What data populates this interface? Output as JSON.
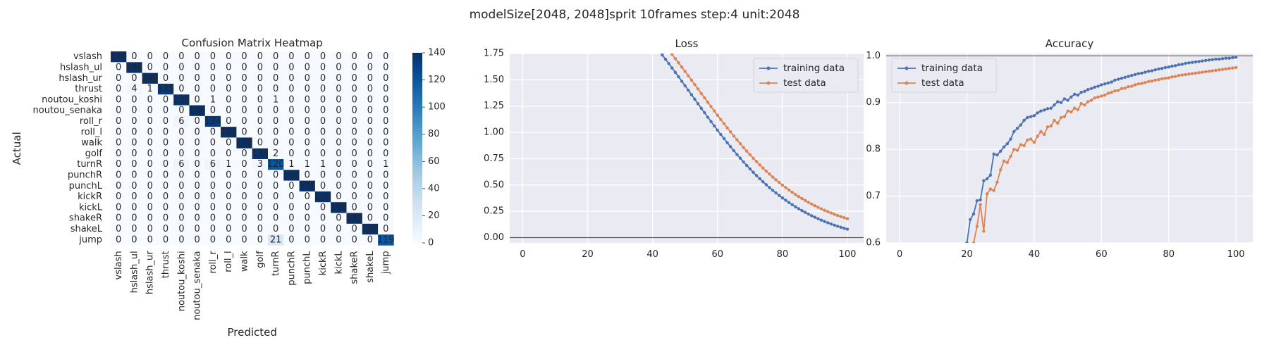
{
  "suptitle": "modelSize[2048, 2048]sprit 10frames step:4 unit:2048",
  "chart_data": [
    {
      "type": "heatmap",
      "title": "Confusion Matrix Heatmap",
      "xlabel": "Predicted",
      "ylabel": "Actual",
      "labels": [
        "vslash",
        "hslash_ul",
        "hslash_ur",
        "thrust",
        "noutou_koshi",
        "noutou_senaka",
        "roll_r",
        "roll_l",
        "walk",
        "golf",
        "turnR",
        "punchR",
        "punchL",
        "kickR",
        "kickL",
        "shakeR",
        "shakeL",
        "jump"
      ],
      "matrix": [
        [
          140,
          0,
          0,
          0,
          0,
          0,
          0,
          0,
          0,
          0,
          0,
          0,
          0,
          0,
          0,
          0,
          0,
          0
        ],
        [
          0,
          140,
          0,
          0,
          0,
          0,
          0,
          0,
          0,
          0,
          0,
          0,
          0,
          0,
          0,
          0,
          0,
          0
        ],
        [
          0,
          0,
          140,
          0,
          0,
          0,
          0,
          0,
          0,
          0,
          0,
          0,
          0,
          0,
          0,
          0,
          0,
          0
        ],
        [
          0,
          4,
          1,
          135,
          0,
          0,
          0,
          0,
          0,
          0,
          0,
          0,
          0,
          0,
          0,
          0,
          0,
          0
        ],
        [
          0,
          0,
          0,
          0,
          138,
          0,
          1,
          0,
          0,
          0,
          1,
          0,
          0,
          0,
          0,
          0,
          0,
          0
        ],
        [
          0,
          0,
          0,
          0,
          0,
          140,
          0,
          0,
          0,
          0,
          0,
          0,
          0,
          0,
          0,
          0,
          0,
          0
        ],
        [
          0,
          0,
          0,
          0,
          6,
          0,
          134,
          0,
          0,
          0,
          0,
          0,
          0,
          0,
          0,
          0,
          0,
          0
        ],
        [
          0,
          0,
          0,
          0,
          0,
          0,
          0,
          140,
          0,
          0,
          0,
          0,
          0,
          0,
          0,
          0,
          0,
          0
        ],
        [
          0,
          0,
          0,
          0,
          0,
          0,
          0,
          0,
          140,
          0,
          0,
          0,
          0,
          0,
          0,
          0,
          0,
          0
        ],
        [
          0,
          0,
          0,
          0,
          0,
          0,
          0,
          0,
          0,
          138,
          2,
          0,
          0,
          0,
          0,
          0,
          0,
          0
        ],
        [
          0,
          0,
          0,
          0,
          6,
          0,
          6,
          1,
          0,
          3,
          120,
          1,
          1,
          1,
          0,
          0,
          0,
          1
        ],
        [
          0,
          0,
          0,
          0,
          0,
          0,
          0,
          0,
          0,
          0,
          0,
          140,
          0,
          0,
          0,
          0,
          0,
          0
        ],
        [
          0,
          0,
          0,
          0,
          0,
          0,
          0,
          0,
          0,
          0,
          0,
          0,
          140,
          0,
          0,
          0,
          0,
          0
        ],
        [
          0,
          0,
          0,
          0,
          0,
          0,
          0,
          0,
          0,
          0,
          0,
          0,
          0,
          140,
          0,
          0,
          0,
          0
        ],
        [
          0,
          0,
          0,
          0,
          0,
          0,
          0,
          0,
          0,
          0,
          0,
          0,
          0,
          0,
          140,
          0,
          0,
          0
        ],
        [
          0,
          0,
          0,
          0,
          0,
          0,
          0,
          0,
          0,
          0,
          0,
          0,
          0,
          0,
          0,
          140,
          0,
          0
        ],
        [
          0,
          0,
          0,
          0,
          0,
          0,
          0,
          0,
          0,
          0,
          0,
          0,
          0,
          0,
          0,
          0,
          140,
          0
        ],
        [
          0,
          0,
          0,
          0,
          0,
          0,
          0,
          0,
          0,
          0,
          21,
          0,
          0,
          0,
          0,
          0,
          0,
          119
        ]
      ],
      "colorbar": {
        "min": 0,
        "max": 140,
        "ticks": [
          0,
          20,
          40,
          60,
          80,
          100,
          120,
          140
        ]
      },
      "colors": {
        "low": "#f7fbff",
        "high": "#08306b"
      }
    },
    {
      "type": "line",
      "title": "Loss",
      "xlim": [
        -4,
        105
      ],
      "ylim": [
        -0.05,
        1.75
      ],
      "xticks": [
        0,
        20,
        40,
        60,
        80,
        100
      ],
      "yticks": [
        "0.00",
        "0.25",
        "0.50",
        "0.75",
        "1.00",
        "1.25",
        "1.50",
        "1.75"
      ],
      "hline": 0,
      "legend": "top-right",
      "series": [
        {
          "name": "training data",
          "color": "#4c72b0",
          "x_start": 1,
          "x_end": 100,
          "y_start": 2.66,
          "y_end": 0.08,
          "mid": 52,
          "k": 0.06,
          "mode": "logistic"
        },
        {
          "name": "test data",
          "color": "#dd8452",
          "x_start": 1,
          "x_end": 100,
          "y_start": 2.7,
          "y_end": 0.18,
          "mid": 54,
          "k": 0.06,
          "mode": "logistic"
        }
      ]
    },
    {
      "type": "line",
      "title": "Accuracy",
      "xlim": [
        -4,
        105
      ],
      "ylim": [
        0.6,
        1.005
      ],
      "xticks": [
        0,
        20,
        40,
        60,
        80,
        100
      ],
      "yticks": [
        "0.6",
        "0.7",
        "0.8",
        "0.9",
        "1.0"
      ],
      "hline": 1.0,
      "legend": "top-left",
      "series": [
        {
          "name": "training data",
          "color": "#4c72b0",
          "points": [
            [
              20,
              0.6
            ],
            [
              21,
              0.65
            ],
            [
              22,
              0.662
            ],
            [
              23,
              0.69
            ],
            [
              24,
              0.692
            ],
            [
              25,
              0.733
            ],
            [
              26,
              0.737
            ],
            [
              27,
              0.745
            ],
            [
              28,
              0.79
            ],
            [
              29,
              0.788
            ],
            [
              30,
              0.796
            ],
            [
              31,
              0.805
            ],
            [
              32,
              0.812
            ],
            [
              33,
              0.822
            ],
            [
              34,
              0.838
            ],
            [
              35,
              0.845
            ],
            [
              36,
              0.852
            ],
            [
              37,
              0.862
            ],
            [
              38,
              0.868
            ],
            [
              39,
              0.87
            ],
            [
              40,
              0.872
            ],
            [
              41,
              0.878
            ],
            [
              42,
              0.882
            ],
            [
              43,
              0.884
            ],
            [
              44,
              0.887
            ],
            [
              45,
              0.888
            ],
            [
              46,
              0.895
            ],
            [
              47,
              0.902
            ],
            [
              48,
              0.9
            ],
            [
              49,
              0.908
            ],
            [
              50,
              0.905
            ],
            [
              51,
              0.912
            ],
            [
              52,
              0.918
            ],
            [
              53,
              0.916
            ],
            [
              54,
              0.922
            ],
            [
              55,
              0.924
            ],
            [
              56,
              0.928
            ],
            [
              57,
              0.93
            ],
            [
              58,
              0.933
            ],
            [
              59,
              0.935
            ],
            [
              60,
              0.938
            ],
            [
              61,
              0.94
            ],
            [
              62,
              0.942
            ],
            [
              63,
              0.944
            ],
            [
              64,
              0.948
            ],
            [
              65,
              0.95
            ],
            [
              66,
              0.952
            ],
            [
              67,
              0.954
            ],
            [
              68,
              0.956
            ],
            [
              69,
              0.958
            ],
            [
              70,
              0.96
            ],
            [
              71,
              0.962
            ],
            [
              72,
              0.963
            ],
            [
              73,
              0.965
            ],
            [
              74,
              0.967
            ],
            [
              75,
              0.968
            ],
            [
              76,
              0.97
            ],
            [
              77,
              0.972
            ],
            [
              78,
              0.973
            ],
            [
              79,
              0.975
            ],
            [
              80,
              0.976
            ],
            [
              81,
              0.978
            ],
            [
              82,
              0.979
            ],
            [
              83,
              0.981
            ],
            [
              84,
              0.982
            ],
            [
              85,
              0.984
            ],
            [
              86,
              0.985
            ],
            [
              87,
              0.986
            ],
            [
              88,
              0.987
            ],
            [
              89,
              0.988
            ],
            [
              90,
              0.989
            ],
            [
              91,
              0.99
            ],
            [
              92,
              0.991
            ],
            [
              93,
              0.992
            ],
            [
              94,
              0.993
            ],
            [
              95,
              0.993
            ],
            [
              96,
              0.994
            ],
            [
              97,
              0.995
            ],
            [
              98,
              0.995
            ],
            [
              99,
              0.996
            ],
            [
              100,
              0.997
            ]
          ]
        },
        {
          "name": "test data",
          "color": "#dd8452",
          "points": [
            [
              22,
              0.6
            ],
            [
              23,
              0.635
            ],
            [
              24,
              0.682
            ],
            [
              25,
              0.625
            ],
            [
              26,
              0.705
            ],
            [
              27,
              0.715
            ],
            [
              28,
              0.712
            ],
            [
              29,
              0.73
            ],
            [
              30,
              0.756
            ],
            [
              31,
              0.775
            ],
            [
              32,
              0.772
            ],
            [
              33,
              0.785
            ],
            [
              34,
              0.8
            ],
            [
              35,
              0.798
            ],
            [
              36,
              0.81
            ],
            [
              37,
              0.808
            ],
            [
              38,
              0.82
            ],
            [
              39,
              0.822
            ],
            [
              40,
              0.815
            ],
            [
              41,
              0.828
            ],
            [
              42,
              0.838
            ],
            [
              43,
              0.832
            ],
            [
              44,
              0.848
            ],
            [
              45,
              0.85
            ],
            [
              46,
              0.862
            ],
            [
              47,
              0.856
            ],
            [
              48,
              0.868
            ],
            [
              49,
              0.87
            ],
            [
              50,
              0.882
            ],
            [
              51,
              0.88
            ],
            [
              52,
              0.888
            ],
            [
              53,
              0.885
            ],
            [
              54,
              0.898
            ],
            [
              55,
              0.895
            ],
            [
              56,
              0.902
            ],
            [
              57,
              0.905
            ],
            [
              58,
              0.91
            ],
            [
              59,
              0.912
            ],
            [
              60,
              0.914
            ],
            [
              61,
              0.916
            ],
            [
              62,
              0.92
            ],
            [
              63,
              0.922
            ],
            [
              64,
              0.925
            ],
            [
              65,
              0.926
            ],
            [
              66,
              0.93
            ],
            [
              67,
              0.931
            ],
            [
              68,
              0.934
            ],
            [
              69,
              0.935
            ],
            [
              70,
              0.938
            ],
            [
              71,
              0.94
            ],
            [
              72,
              0.941
            ],
            [
              73,
              0.943
            ],
            [
              74,
              0.945
            ],
            [
              75,
              0.946
            ],
            [
              76,
              0.948
            ],
            [
              77,
              0.949
            ],
            [
              78,
              0.951
            ],
            [
              79,
              0.952
            ],
            [
              80,
              0.953
            ],
            [
              81,
              0.955
            ],
            [
              82,
              0.956
            ],
            [
              83,
              0.958
            ],
            [
              84,
              0.959
            ],
            [
              85,
              0.96
            ],
            [
              86,
              0.961
            ],
            [
              87,
              0.962
            ],
            [
              88,
              0.963
            ],
            [
              89,
              0.964
            ],
            [
              90,
              0.965
            ],
            [
              91,
              0.966
            ],
            [
              92,
              0.967
            ],
            [
              93,
              0.968
            ],
            [
              94,
              0.969
            ],
            [
              95,
              0.97
            ],
            [
              96,
              0.971
            ],
            [
              97,
              0.972
            ],
            [
              98,
              0.973
            ],
            [
              99,
              0.974
            ],
            [
              100,
              0.975
            ]
          ]
        }
      ]
    }
  ]
}
